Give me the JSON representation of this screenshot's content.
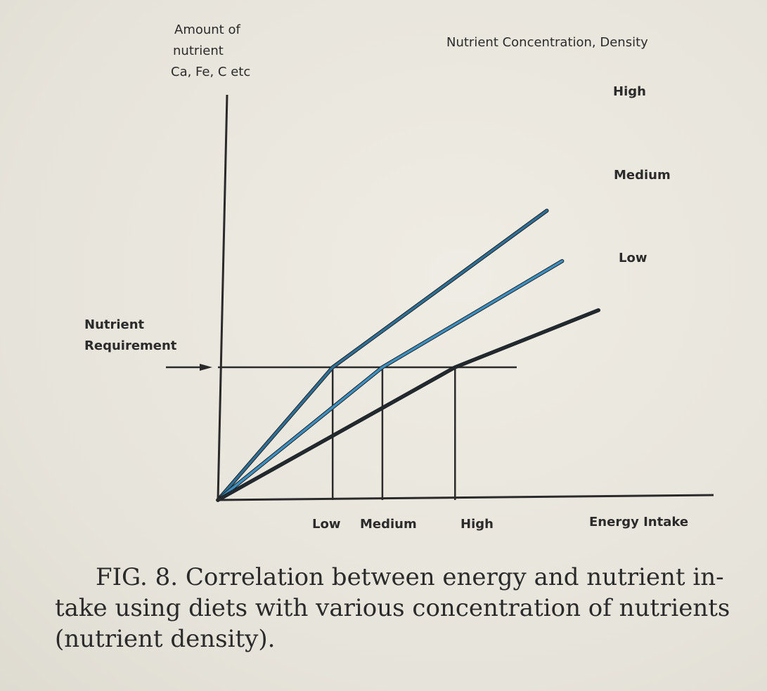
{
  "chart_data": {
    "type": "line",
    "y_axis_title_lines": [
      "Amount of",
      "nutrient",
      "Ca, Fe, C etc"
    ],
    "legend_title": "Nutrient Concentration, Density",
    "xlabel": "Energy Intake",
    "requirement_label_lines": [
      "Nutrient",
      "Requirement"
    ],
    "requirement_level": 1.0,
    "x_ticks": [
      {
        "label": "Low",
        "x": 0.6
      },
      {
        "label": "Medium",
        "x": 0.86
      },
      {
        "label": "High",
        "x": 1.24
      }
    ],
    "xlim": [
      0,
      2.3
    ],
    "ylim": [
      0,
      2.3
    ],
    "series": [
      {
        "name": "High",
        "x": [
          0,
          0.6,
          1.72
        ],
        "y": [
          0,
          1.0,
          2.18
        ],
        "color": "#2f6f95"
      },
      {
        "name": "Medium",
        "x": [
          0,
          0.86,
          1.8
        ],
        "y": [
          0,
          1.0,
          1.8
        ],
        "color": "#3d8fc0"
      },
      {
        "name": "Low",
        "x": [
          0,
          1.24,
          1.99
        ],
        "y": [
          0,
          1.0,
          1.43
        ],
        "color": "#222a30"
      }
    ]
  },
  "caption": {
    "lines": [
      "FIG.  8.  Correlation between energy and nutrient in-",
      "take using diets with various concentration of nutrients",
      "(nutrient density)."
    ]
  }
}
